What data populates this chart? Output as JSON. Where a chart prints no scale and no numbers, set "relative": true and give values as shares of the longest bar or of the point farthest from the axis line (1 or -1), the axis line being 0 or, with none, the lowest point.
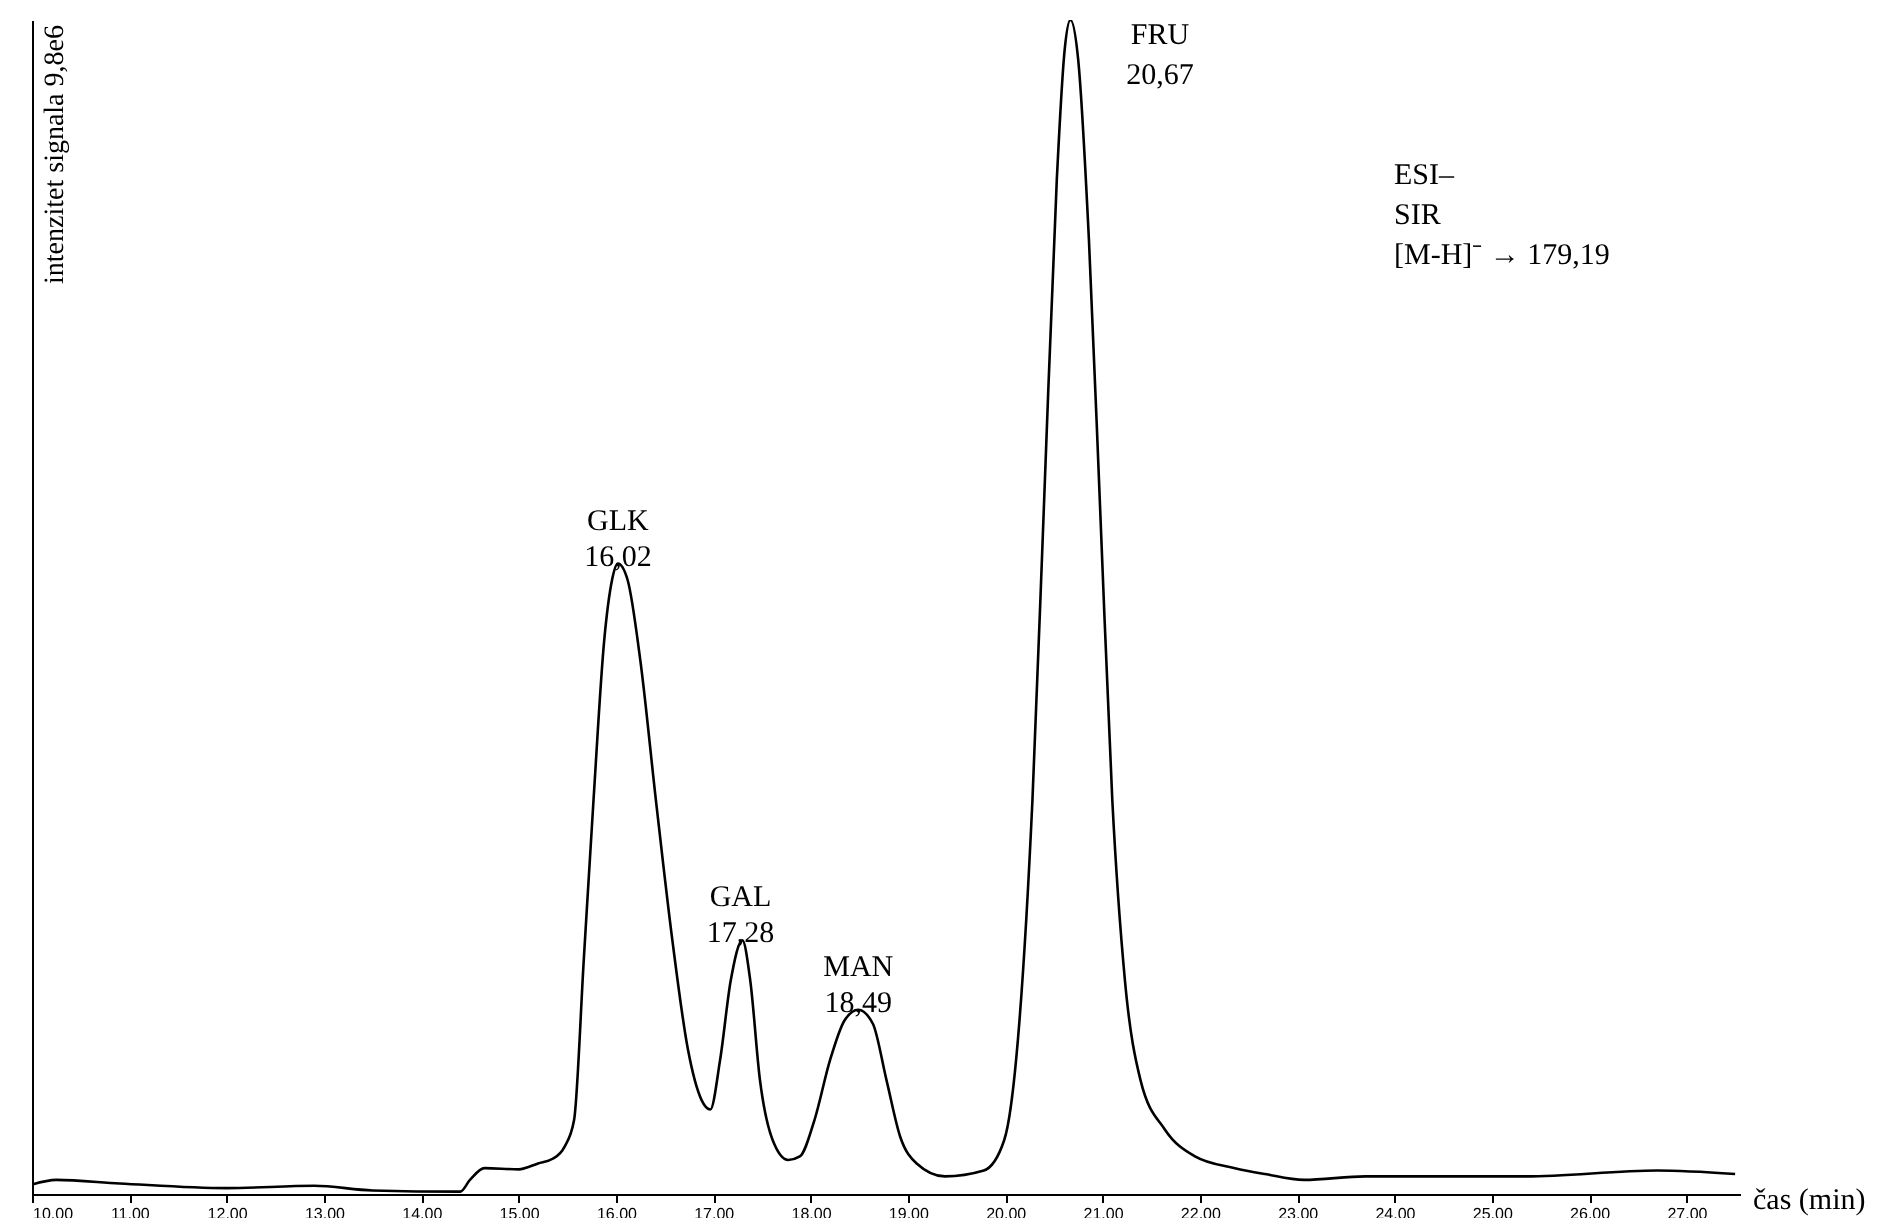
{
  "chart_data": {
    "type": "line",
    "relative": true,
    "xlabel": "čas (min)",
    "ylabel": "intenzitet signala 9,8e6",
    "xlim": [
      10,
      27.55
    ],
    "xticks": [
      {
        "value": 10,
        "label": "10.00"
      },
      {
        "value": 11,
        "label": "11.00"
      },
      {
        "value": 12,
        "label": "12.00"
      },
      {
        "value": 13,
        "label": "13.00"
      },
      {
        "value": 14,
        "label": "14.00"
      },
      {
        "value": 15,
        "label": "15.00"
      },
      {
        "value": 16,
        "label": "16.00"
      },
      {
        "value": 17,
        "label": "17.00"
      },
      {
        "value": 18,
        "label": "18.00"
      },
      {
        "value": 19,
        "label": "19.00"
      },
      {
        "value": 20,
        "label": "20.00"
      },
      {
        "value": 21,
        "label": "21.00"
      },
      {
        "value": 22,
        "label": "22.00"
      },
      {
        "value": 23,
        "label": "23.00"
      },
      {
        "value": 24,
        "label": "24.00"
      },
      {
        "value": 25,
        "label": "25.00"
      },
      {
        "value": 26,
        "label": "26.00"
      },
      {
        "value": 27,
        "label": "27.00"
      }
    ],
    "series": [
      {
        "color": "#000000",
        "x": [
          10.0,
          10.25,
          10.9,
          12.0,
          12.9,
          13.5,
          14.4,
          14.5,
          14.65,
          15.0,
          15.2,
          15.35,
          15.47,
          15.57,
          15.67,
          15.77,
          15.88,
          15.96,
          16.02,
          16.12,
          16.25,
          16.41,
          16.58,
          16.74,
          16.88,
          16.97,
          17.07,
          17.18,
          17.3,
          17.38,
          17.48,
          17.61,
          17.77,
          17.89,
          18.04,
          18.2,
          18.35,
          18.49,
          18.64,
          18.78,
          18.92,
          19.09,
          19.38,
          19.78,
          19.99,
          20.13,
          20.28,
          20.4,
          20.53,
          20.61,
          20.67,
          20.75,
          20.86,
          20.98,
          21.1,
          21.23,
          21.39,
          21.64,
          21.95,
          22.36,
          22.67,
          23.07,
          23.7,
          25.35,
          26.7,
          27.5
        ],
        "values": [
          0.008,
          0.012,
          0.009,
          0.005,
          0.007,
          0.003,
          0.002,
          0.012,
          0.022,
          0.021,
          0.026,
          0.03,
          0.04,
          0.063,
          0.2,
          0.336,
          0.472,
          0.523,
          0.537,
          0.523,
          0.455,
          0.336,
          0.216,
          0.123,
          0.08,
          0.072,
          0.114,
          0.182,
          0.216,
          0.182,
          0.097,
          0.046,
          0.029,
          0.032,
          0.063,
          0.114,
          0.148,
          0.157,
          0.145,
          0.097,
          0.049,
          0.026,
          0.015,
          0.02,
          0.046,
          0.131,
          0.336,
          0.591,
          0.864,
          0.974,
          1,
          0.966,
          0.813,
          0.574,
          0.336,
          0.182,
          0.097,
          0.055,
          0.032,
          0.022,
          0.017,
          0.012,
          0.015,
          0.015,
          0.02,
          0.017
        ]
      }
    ],
    "annotations": [
      {
        "text": "GLK\n16,02",
        "x": 16.02,
        "y": 0.537
      },
      {
        "text": "GAL\n17,28",
        "x": 17.28,
        "y": 0.216
      },
      {
        "text": "MAN\n18,49",
        "x": 18.49,
        "y": 0.157
      },
      "FRU\n20,67",
      "ESI–\nSIR\n[M-H]⁻ → 179,19"
    ]
  }
}
